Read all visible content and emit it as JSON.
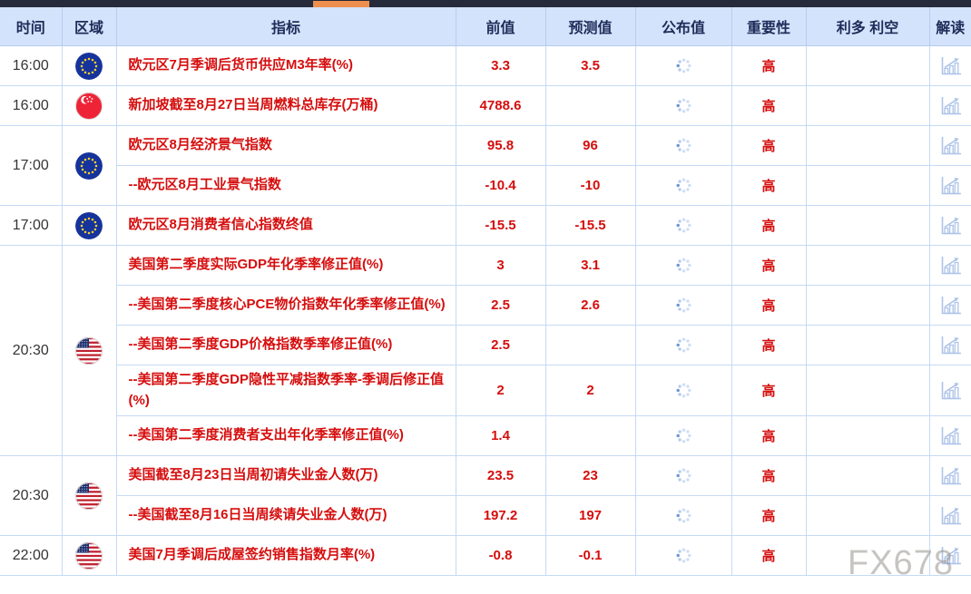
{
  "app": {
    "watermark": "FX678"
  },
  "scrollbar": {
    "track_color": "#262b3b",
    "thumb_color": "#ef8f4f"
  },
  "colors": {
    "accent_red": "#d60d0d",
    "header_bg": "#d3e3fc",
    "header_text": "#1d2c58",
    "grid_line": "#c6daf4",
    "icon_blue": "#aec3e9",
    "spinner_dark_dot": "#6d96d6",
    "spinner_light_dot": "#cfdef5"
  },
  "icons": {
    "actual_pending": "loading-spinner-icon",
    "explain": "chart-icon"
  },
  "table": {
    "columns": [
      {
        "key": "time",
        "label": "时间"
      },
      {
        "key": "region",
        "label": "区域"
      },
      {
        "key": "indicator",
        "label": "指标"
      },
      {
        "key": "previous",
        "label": "前值"
      },
      {
        "key": "forecast",
        "label": "预测值"
      },
      {
        "key": "actual",
        "label": "公布值"
      },
      {
        "key": "importance",
        "label": "重要性"
      },
      {
        "key": "bias",
        "label": "利多 利空"
      },
      {
        "key": "explain",
        "label": "解读"
      }
    ],
    "flag_icon_names": {
      "eu": "eu-flag-icon",
      "sg": "singapore-flag-icon",
      "us": "us-flag-icon"
    },
    "groups": [
      {
        "time": "16:00",
        "flag": "eu",
        "rows": [
          {
            "indicator": "欧元区7月季调后货币供应M3年率(%)",
            "previous": "3.3",
            "forecast": "3.5",
            "importance": "高"
          }
        ]
      },
      {
        "time": "16:00",
        "flag": "sg",
        "rows": [
          {
            "indicator": "新加坡截至8月27日当周燃料总库存(万桶)",
            "previous": "4788.6",
            "forecast": "",
            "importance": "高"
          }
        ]
      },
      {
        "time": "17:00",
        "flag": "eu",
        "rows": [
          {
            "indicator": "欧元区8月经济景气指数",
            "previous": "95.8",
            "forecast": "96",
            "importance": "高"
          },
          {
            "indicator": "--欧元区8月工业景气指数",
            "previous": "-10.4",
            "forecast": "-10",
            "importance": "高"
          }
        ]
      },
      {
        "time": "17:00",
        "flag": "eu",
        "rows": [
          {
            "indicator": "欧元区8月消费者信心指数终值",
            "previous": "-15.5",
            "forecast": "-15.5",
            "importance": "高"
          }
        ]
      },
      {
        "time": "20:30",
        "flag": "us",
        "rows": [
          {
            "indicator": "美国第二季度实际GDP年化季率修正值(%)",
            "previous": "3",
            "forecast": "3.1",
            "importance": "高"
          },
          {
            "indicator": "--美国第二季度核心PCE物价指数年化季率修正值(%)",
            "previous": "2.5",
            "forecast": "2.6",
            "importance": "高"
          },
          {
            "indicator": "--美国第二季度GDP价格指数季率修正值(%)",
            "previous": "2.5",
            "forecast": "",
            "importance": "高"
          },
          {
            "indicator": "--美国第二季度GDP隐性平减指数季率-季调后修正值(%)",
            "previous": "2",
            "forecast": "2",
            "importance": "高"
          },
          {
            "indicator": "--美国第二季度消费者支出年化季率修正值(%)",
            "previous": "1.4",
            "forecast": "",
            "importance": "高"
          }
        ]
      },
      {
        "time": "20:30",
        "flag": "us",
        "rows": [
          {
            "indicator": "美国截至8月23日当周初请失业金人数(万)",
            "previous": "23.5",
            "forecast": "23",
            "importance": "高"
          },
          {
            "indicator": "--美国截至8月16日当周续请失业金人数(万)",
            "previous": "197.2",
            "forecast": "197",
            "importance": "高"
          }
        ]
      },
      {
        "time": "22:00",
        "flag": "us",
        "rows": [
          {
            "indicator": "美国7月季调后成屋签约销售指数月率(%)",
            "previous": "-0.8",
            "forecast": "-0.1",
            "importance": "高"
          }
        ]
      }
    ]
  }
}
